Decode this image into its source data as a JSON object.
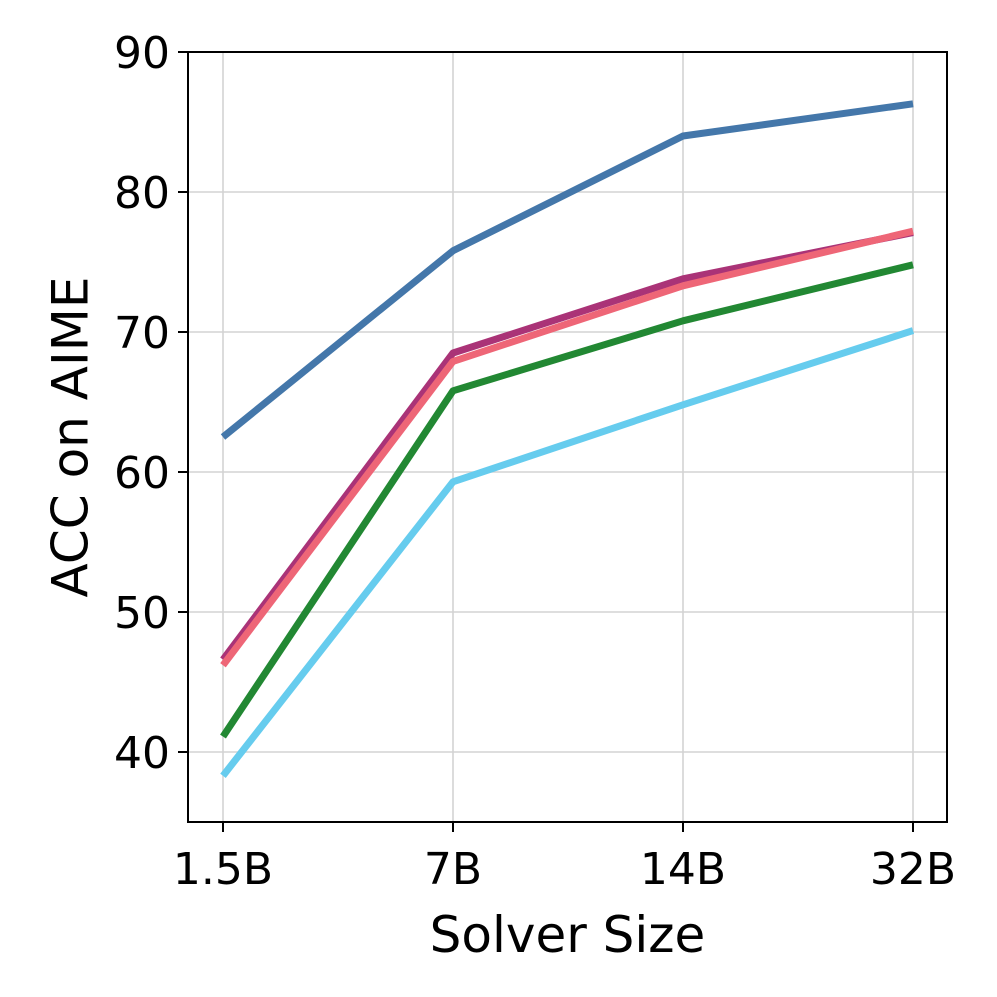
{
  "chart_data": {
    "type": "line",
    "title": "",
    "xlabel": "Solver Size",
    "ylabel": "ACC on AIME",
    "categories": [
      "1.5B",
      "7B",
      "14B",
      "32B"
    ],
    "ylim": [
      35,
      90
    ],
    "yticks": [
      40,
      50,
      60,
      70,
      80,
      90
    ],
    "grid": true,
    "legend": "none",
    "series": [
      {
        "color": "#4477aa",
        "values": [
          62.5,
          75.8,
          84.0,
          86.3
        ]
      },
      {
        "color": "#aa3377",
        "values": [
          46.6,
          68.5,
          73.8,
          77.1
        ]
      },
      {
        "color": "#ee6677",
        "values": [
          46.2,
          67.9,
          73.3,
          77.2
        ]
      },
      {
        "color": "#228833",
        "values": [
          41.1,
          65.8,
          70.8,
          74.8
        ]
      },
      {
        "color": "#66ccee",
        "values": [
          38.3,
          59.3,
          64.8,
          70.1
        ]
      }
    ]
  }
}
